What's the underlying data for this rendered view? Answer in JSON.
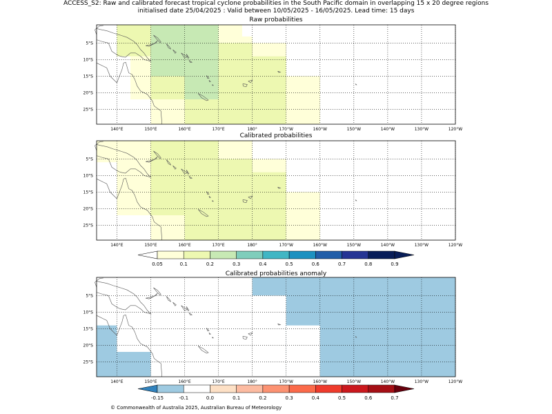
{
  "title": {
    "line1": "ACCESS_S2: Raw and calibrated forecast tropical cyclone probabilities in the South Pacific domain in overlapping 15 x 20 degree regions",
    "line2": "initialised date 25/04/2025 :  Valid between 10/05/2025 - 16/05/2025. Lead time: 15 days"
  },
  "footer": "© Commonwealth of Australia 2025, Australian Bureau of Meteorology",
  "chart_data": [
    {
      "type": "heatmap",
      "title": "Raw probabilities",
      "x_ticks": [
        "140°E",
        "150°E",
        "160°E",
        "170°E",
        "180°",
        "170°W",
        "160°W",
        "150°W",
        "140°W",
        "130°W",
        "120°W"
      ],
      "y_ticks": [
        "5°S",
        "10°S",
        "15°S",
        "20°S",
        "25°S"
      ],
      "xlim": [
        134,
        240
      ],
      "ylim": [
        -29.5,
        0.5
      ],
      "grid": true,
      "cells": [
        {
          "x": [
            134,
            140
          ],
          "y": [
            -6,
            0.5
          ],
          "v": 0.03
        },
        {
          "x": [
            140,
            150
          ],
          "y": [
            -9,
            0.5
          ],
          "v": 0.12
        },
        {
          "x": [
            150,
            170
          ],
          "y": [
            -15,
            0.5
          ],
          "v": 0.22
        },
        {
          "x": [
            170,
            177
          ],
          "y": [
            -5,
            0.5
          ],
          "v": 0.05
        },
        {
          "x": [
            170,
            180
          ],
          "y": [
            -5,
            -3
          ],
          "v": 0.05
        },
        {
          "x": [
            180,
            190
          ],
          "y": [
            -9,
            -5
          ],
          "v": 0.05
        },
        {
          "x": [
            144,
            150
          ],
          "y": [
            -22,
            -9
          ],
          "v": 0.05
        },
        {
          "x": [
            150,
            160
          ],
          "y": [
            -22,
            -15
          ],
          "v": 0.12
        },
        {
          "x": [
            160,
            170
          ],
          "y": [
            -22,
            -15
          ],
          "v": 0.22
        },
        {
          "x": [
            170,
            180
          ],
          "y": [
            -29.5,
            -5
          ],
          "v": 0.12
        },
        {
          "x": [
            180,
            190
          ],
          "y": [
            -29.5,
            -9
          ],
          "v": 0.12
        },
        {
          "x": [
            160,
            170
          ],
          "y": [
            -29.5,
            -22
          ],
          "v": 0.12
        },
        {
          "x": [
            150,
            160
          ],
          "y": [
            -29.5,
            -22
          ],
          "v": 0.05
        },
        {
          "x": [
            190,
            200
          ],
          "y": [
            -29.5,
            -15
          ],
          "v": 0.05
        }
      ]
    },
    {
      "type": "heatmap",
      "title": "Calibrated probabilities",
      "x_ticks": [
        "140°E",
        "150°E",
        "160°E",
        "170°E",
        "180°",
        "170°W",
        "160°W",
        "150°W",
        "140°W",
        "130°W",
        "120°W"
      ],
      "y_ticks": [
        "5°S",
        "10°S",
        "15°S",
        "20°S",
        "25°S"
      ],
      "xlim": [
        134,
        240
      ],
      "ylim": [
        -29.5,
        0.5
      ],
      "grid": true,
      "cells": [
        {
          "x": [
            134,
            140
          ],
          "y": [
            -6,
            0.5
          ],
          "v": 0.05
        },
        {
          "x": [
            140,
            150
          ],
          "y": [
            -5,
            0.5
          ],
          "v": 0.05
        },
        {
          "x": [
            140,
            150
          ],
          "y": [
            -22,
            -5
          ],
          "v": 0.05
        },
        {
          "x": [
            150,
            170
          ],
          "y": [
            -22,
            0.5
          ],
          "v": 0.12
        },
        {
          "x": [
            170,
            180
          ],
          "y": [
            -5,
            0.5
          ],
          "v": 0.05
        },
        {
          "x": [
            170,
            180
          ],
          "y": [
            -29.5,
            -5
          ],
          "v": 0.12
        },
        {
          "x": [
            180,
            190
          ],
          "y": [
            -9,
            -5
          ],
          "v": 0.05
        },
        {
          "x": [
            180,
            190
          ],
          "y": [
            -29.5,
            -9
          ],
          "v": 0.12
        },
        {
          "x": [
            160,
            170
          ],
          "y": [
            -29.5,
            -22
          ],
          "v": 0.12
        },
        {
          "x": [
            150,
            160
          ],
          "y": [
            -29.5,
            -22
          ],
          "v": 0.05
        },
        {
          "x": [
            190,
            200
          ],
          "y": [
            -29.5,
            -15
          ],
          "v": 0.05
        }
      ]
    },
    {
      "type": "heatmap",
      "title": "Calibrated probabilities anomaly",
      "x_ticks": [
        "140°E",
        "150°E",
        "160°E",
        "170°E",
        "180°",
        "170°W",
        "160°W",
        "150°W",
        "140°W",
        "130°W",
        "120°W"
      ],
      "y_ticks": [
        "5°S",
        "10°S",
        "15°S",
        "20°S",
        "25°S"
      ],
      "xlim": [
        134,
        240
      ],
      "ylim": [
        -29.5,
        0.5
      ],
      "grid": true,
      "cells": [
        {
          "x": [
            134,
            140
          ],
          "y": [
            -29.5,
            0.5
          ],
          "v": -0.05
        },
        {
          "x": [
            134,
            140
          ],
          "y": [
            -29.5,
            -14
          ],
          "v": -0.12
        },
        {
          "x": [
            140,
            150
          ],
          "y": [
            -22,
            -6
          ],
          "v": -0.05
        },
        {
          "x": [
            140,
            150
          ],
          "y": [
            -29.5,
            -22
          ],
          "v": -0.12
        },
        {
          "x": [
            150,
            160
          ],
          "y": [
            -29.5,
            -22
          ],
          "v": -0.05
        },
        {
          "x": [
            170,
            180
          ],
          "y": [
            -5,
            0.5
          ],
          "v": -0.05
        },
        {
          "x": [
            180,
            190
          ],
          "y": [
            -5,
            0.5
          ],
          "v": -0.12
        },
        {
          "x": [
            180,
            190
          ],
          "y": [
            -14,
            -5
          ],
          "v": -0.05
        },
        {
          "x": [
            190,
            240
          ],
          "y": [
            -29.5,
            0.5
          ],
          "v": -0.12
        },
        {
          "x": [
            190,
            200
          ],
          "y": [
            -14,
            -5
          ],
          "v": -0.12
        },
        {
          "x": [
            190,
            200
          ],
          "y": [
            -29.5,
            -14
          ],
          "v": -0.05
        },
        {
          "x": [
            180,
            190
          ],
          "y": [
            -29.5,
            -22
          ],
          "v": -0.05
        }
      ]
    }
  ],
  "colorbars": [
    {
      "labels": [
        "0.05",
        "0.1",
        "0.2",
        "0.3",
        "0.4",
        "0.5",
        "0.6",
        "0.7",
        "0.8",
        "0.9"
      ],
      "under_color": "#ffffff",
      "colors": [
        "#ffffd9",
        "#edf8b1",
        "#c7e9b4",
        "#7fcdbb",
        "#41b6c4",
        "#1d91c0",
        "#225ea8",
        "#253494",
        "#081d58"
      ],
      "over_color": "#081d58"
    },
    {
      "labels": [
        "-0.15",
        "-0.1",
        "0.0",
        "0.1",
        "0.2",
        "0.3",
        "0.4",
        "0.5",
        "0.6",
        "0.7"
      ],
      "under_color": "#3182bd",
      "colors": [
        "#9ecae1",
        "#ffffff",
        "#fde0c5",
        "#fcbba1",
        "#fc9272",
        "#fb6a4a",
        "#ef3b2c",
        "#cb181d",
        "#a50f15"
      ],
      "over_color": "#67000d"
    }
  ],
  "colors": {
    "raw_low": "#ffffd9",
    "raw_mid": "#edf8b1",
    "raw_high": "#c7e9b4",
    "anom_neg_small": "#9ecae1",
    "anom_neg_large": "#3182bd",
    "coast": "#555555",
    "grid": "#000000"
  }
}
